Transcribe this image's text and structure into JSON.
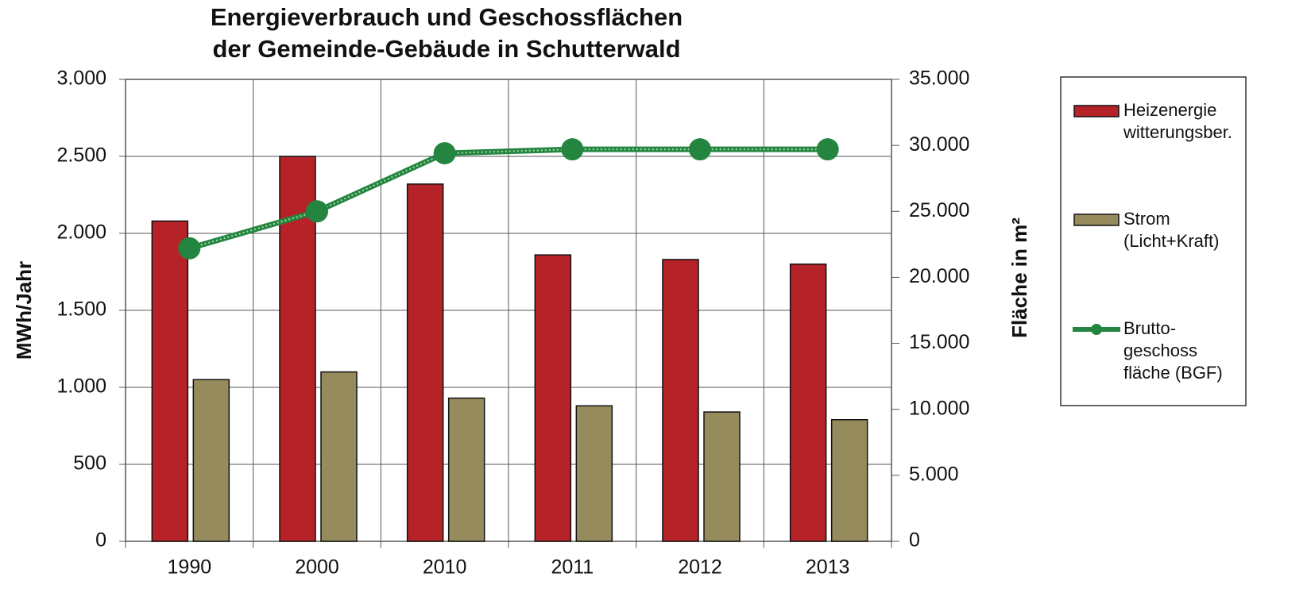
{
  "chart_data": {
    "type": "bar",
    "title": "Energieverbrauch und Geschossflächen\nder Gemeinde-Gebäude  in Schutterwald",
    "y_label": "MWh/Jahr",
    "y2_label": "Fläche in m²",
    "categories": [
      "1990",
      "2000",
      "2010",
      "2011",
      "2012",
      "2013"
    ],
    "series": [
      {
        "name": "Heizenergie\nwitterungsber.",
        "type": "bar",
        "color": "#b52328",
        "values": [
          2080,
          2500,
          2320,
          1860,
          1830,
          1800
        ]
      },
      {
        "name": "Strom\n(Licht+Kraft)",
        "type": "bar",
        "color": "#958b5c",
        "values": [
          1050,
          1100,
          930,
          880,
          840,
          790
        ]
      },
      {
        "name": "Brutto-\ngeschoss\nfläche (BGF)",
        "type": "line",
        "axis": "y2",
        "color": "#23853f",
        "values": [
          22200,
          25000,
          29400,
          29700,
          29700,
          29700
        ]
      }
    ],
    "ylim": [
      0,
      3000
    ],
    "yticks": [
      0,
      500,
      {
        "value": 1000,
        "label": "1.000"
      },
      {
        "value": 1500,
        "label": "1.500"
      },
      {
        "value": 2000,
        "label": "2.000"
      },
      {
        "value": 2500,
        "label": "2.500"
      },
      {
        "value": 3000,
        "label": "3.000"
      }
    ],
    "y2lim": [
      0,
      35000
    ],
    "y2ticks": [
      0,
      {
        "value": 5000,
        "label": "5.000"
      },
      {
        "value": 10000,
        "label": "10.000"
      },
      {
        "value": 15000,
        "label": "15.000"
      },
      {
        "value": 20000,
        "label": "20.000"
      },
      {
        "value": 25000,
        "label": "25.000"
      },
      {
        "value": 30000,
        "label": "30.000"
      },
      {
        "value": 35000,
        "label": "35.000"
      }
    ],
    "grid": true,
    "legend": "right"
  }
}
